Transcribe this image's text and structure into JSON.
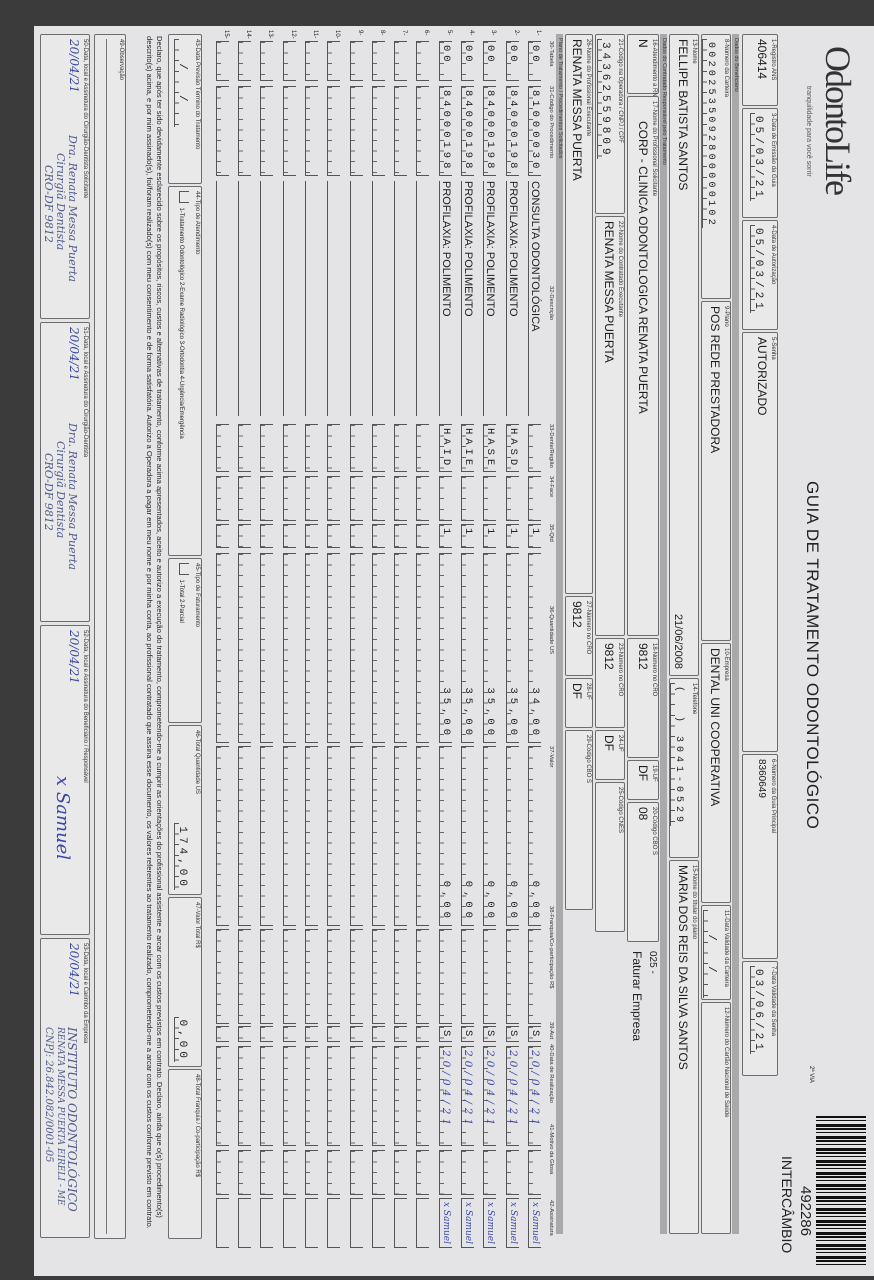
{
  "header": {
    "logo": "OdontoLife",
    "slogan": "tranquilidade para você sorrir",
    "title": "GUIA DE TRATAMENTO ODONTOLÓGICO",
    "via": "2ª VIA",
    "barcode_number": "492286",
    "exchange": "INTERCÂMBIO"
  },
  "guide": {
    "f1_label": "1-Registro ANS",
    "f1": "406414",
    "f3_label": "3-Data de Emissão da Guia",
    "f3": "05/03/21",
    "f4_label": "4-Data de Autorização",
    "f4": "05/03/21",
    "f5_label": "5-Senha",
    "f5": "AUTORIZADO",
    "f6_label": "6-Número da Guia Principal",
    "f6": "8360649",
    "f7_label": "7-Data Validade da Senha",
    "f7": "03/06/21"
  },
  "sections": {
    "beneficiary": "Dados do Beneficiário",
    "contractor": "Dados do Contratado Responsável pelo Tratamento",
    "plan": "Plano de Tratamento / Procedimentos Solicitados"
  },
  "beneficiary": {
    "f8_label": "8-Número da Carteira",
    "f8": "00202535092800000102",
    "f9_label": "9-Plano",
    "f9": "POS REDE PRESTADORA",
    "f10_label": "10-Empresa",
    "f10": "DENTAL UNI COOPERATIVA",
    "f11_label": "11-Data Validade da Carteira",
    "f11": "  /  /  ",
    "f12_label": "12-Número do Cartão Nacional de Saúde",
    "f12": "",
    "f13_label": "13-Nome",
    "f13": "FELLIPE BATISTA SANTOS",
    "birth": "21/06/2008",
    "f14_label": "14-Telefone",
    "f14": "(  ) 3041-0529",
    "f15_label": "15-Nome do titular do plano",
    "f15": "MARIA DOS REIS DA SILVA SANTOS"
  },
  "contractor": {
    "f16_label": "16-Atendimento a RN",
    "f16": "N",
    "f17_label": "17-Nome do Profissional Solicitante",
    "f17": "CORP - CLINICA ODONTOLOGICA RENATA PUERTA",
    "f18_label": "18-Número no CRO",
    "f18": "9812",
    "f19_label": "19-UF",
    "f19": "DF",
    "f20_label": "20-Código CBO S",
    "f20": "08",
    "billing_code": "025 -",
    "billing_text": "Faturar Empresa",
    "f21_label": "21-Código na Operadora / CNPJ / CPF",
    "f21": "34362559809",
    "f22_label": "22-Nome do Contratado Executante",
    "f22": "RENATA MESSA PUERTA",
    "f23_label": "23-Número no CRO",
    "f23": "9812",
    "f24_label": "24-UF",
    "f24": "DF",
    "f25_label": "25-Código CNES",
    "f25": "",
    "f26_label": "26-Nome do Profissional Executante",
    "f26": "RENATA MESSA PUERTA",
    "f27_label": "27-Número no CRO",
    "f27": "9812",
    "f28_label": "28-UF",
    "f28": "DF",
    "f29_label": "29-Código CBO S",
    "f29": ""
  },
  "table": {
    "columns": [
      "30-Tabela",
      "31-Código do Procedimento",
      "32-Descrição",
      "33-Dente/Região",
      "34-Face",
      "35-Qtd",
      "36-Quantidade US",
      "37-Valor",
      "38-Franquia/Co-participação R$",
      "39-Aut",
      "40-Data de Realização",
      "41-Motivo da Glosa",
      "42-Assinatura"
    ],
    "rows": [
      {
        "n": "1-",
        "tabela": "00",
        "codigo": "81000030",
        "descricao": "CONSULTA ODONTOLÓGICA",
        "dente": "",
        "face": "",
        "qtd": "1",
        "us": "34,00",
        "valor": "0,00",
        "franquia": "",
        "aut": "S",
        "data": "20/04/21",
        "motivo": "",
        "assinatura": "x Samuel"
      },
      {
        "n": "2-",
        "tabela": "00",
        "codigo": "84000198",
        "descricao": "PROFILAXIA: POLIMENTO",
        "dente": "HASD",
        "face": "",
        "qtd": "1",
        "us": "35,00",
        "valor": "0,00",
        "franquia": "",
        "aut": "S",
        "data": "20/04/21",
        "motivo": "",
        "assinatura": "x Samuel"
      },
      {
        "n": "3-",
        "tabela": "00",
        "codigo": "84000198",
        "descricao": "PROFILAXIA: POLIMENTO",
        "dente": "HASE",
        "face": "",
        "qtd": "1",
        "us": "35,00",
        "valor": "0,00",
        "franquia": "",
        "aut": "S",
        "data": "20/04/21",
        "motivo": "",
        "assinatura": "x Samuel"
      },
      {
        "n": "4-",
        "tabela": "00",
        "codigo": "84000198",
        "descricao": "PROFILAXIA: POLIMENTO",
        "dente": "HAIE",
        "face": "",
        "qtd": "1",
        "us": "35,00",
        "valor": "0,00",
        "franquia": "",
        "aut": "S",
        "data": "20/04/21",
        "motivo": "",
        "assinatura": "x Samuel"
      },
      {
        "n": "5-",
        "tabela": "00",
        "codigo": "84000198",
        "descricao": "PROFILAXIA: POLIMENTO",
        "dente": "HAID",
        "face": "",
        "qtd": "1",
        "us": "35,00",
        "valor": "0,00",
        "franquia": "",
        "aut": "S",
        "data": "20/04/21",
        "motivo": "",
        "assinatura": "x Samuel"
      },
      {
        "n": "6-"
      },
      {
        "n": "7-"
      },
      {
        "n": "8-"
      },
      {
        "n": "9-"
      },
      {
        "n": "10-"
      },
      {
        "n": "11-"
      },
      {
        "n": "12-"
      },
      {
        "n": "13-"
      },
      {
        "n": "14-"
      },
      {
        "n": "15-"
      }
    ]
  },
  "totals": {
    "f43_label": "43-Data Previsão Término do Tratamento",
    "f43": "  /  /  ",
    "f44_label": "44-Tipo de Atendimento",
    "f44_options": "1-Tratamento Odontológico  2-Exame Radiológico  3-Ortodontia  4-Urgência/Emergência",
    "f45_label": "45-Tipo de Faturamento",
    "f45_options": "1-Total  2-Parcial",
    "f46_label": "46-Total Quantidade US",
    "f46": "174,00",
    "f47_label": "47-Valor Total R$",
    "f47": "0,00",
    "f48_label": "48-Total Franquia / Co-participação R$",
    "f48": ""
  },
  "declaration": "Declaro, que após ter sido devidamente esclarecido sobre os propósitos, riscos, custos e alternativas de tratamento, conforme acima apresentados, aceito e autorizo a execução do tratamento, comprometendo-me a cumprir as orientações do profissional assistente e arcar com os custos previstos em contrato. Declaro, ainda que o(s) procedimento(s) descrito(s) acima, e por mim assinado(s), foi/foram realizado(s) com meu consentimento e de forma satisfatória. Autorizo a Operadora a pagar em meu nome e por minha conta, ao profissional contratado que assina esse documento, os valores referentes ao tratamento realizado, comprometendo-me a arcar com os custos conforme previsto em contrato.",
  "observation_label": "49-Observação",
  "signatures": [
    {
      "label": "50-Data, local e Assinatura do Cirurgião-Dentista Solicitante",
      "date": "20/04/21"
    },
    {
      "label": "51-Data, local e Assinatura do Cirurgião-Dentista",
      "date": "20/04/21"
    },
    {
      "label": "52-Data, local e Assinatura do Beneficiário / Responsável",
      "date": "20/04/21",
      "sign": "x Samuel"
    },
    {
      "label": "53-Data, local e Carimbo da Empresa",
      "date": "20/04/21"
    }
  ],
  "stamps": {
    "dentist": [
      "Dra. Renata Messa Puerta",
      "Cirurgiã Dentista",
      "CRO-DF 9812"
    ],
    "company": [
      "INSTITUTO ODONTOLÓGICO",
      "RENATA MESSA PUERTA EIRELI - ME",
      "CNPJ: 26.842.082/0001-05"
    ]
  },
  "colors": {
    "paper": "#e4e4e6",
    "section_bar": "#a9a9ab",
    "ink_blue": "#3a46a8"
  }
}
